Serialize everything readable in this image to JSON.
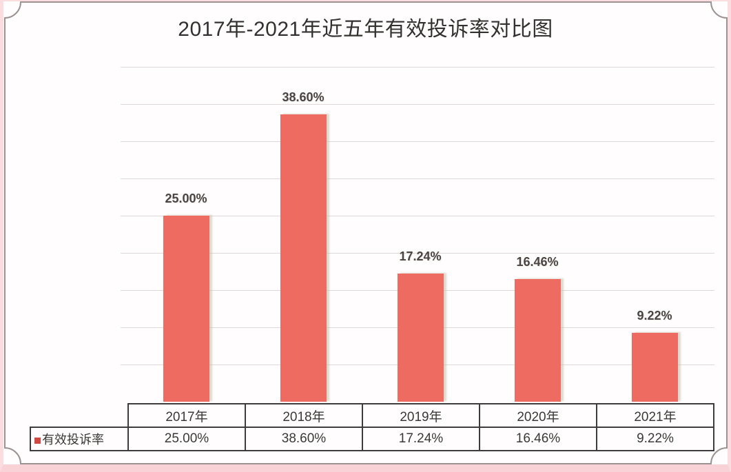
{
  "chart_data": {
    "type": "bar",
    "title": "2017年-2021年近五年有效投诉率对比图",
    "categories": [
      "2017年",
      "2018年",
      "2019年",
      "2020年",
      "2021年"
    ],
    "series": [
      {
        "name": "有效投诉率",
        "values": [
          25.0,
          38.6,
          17.24,
          16.46,
          9.22
        ]
      }
    ],
    "data_labels": [
      "25.00%",
      "38.60%",
      "17.24%",
      "16.46%",
      "9.22%"
    ],
    "xlabel": "",
    "ylabel": "",
    "ylim": [
      0,
      45
    ],
    "gridline_step": 5,
    "grid": true,
    "legend_position": "bottom-table-left",
    "show_data_table": true,
    "data_table": {
      "legend_label": "有效投诉率",
      "year_row": [
        "2017年",
        "2018年",
        "2019年",
        "2020年",
        "2021年"
      ],
      "value_row": [
        "25.00%",
        "38.60%",
        "17.24%",
        "16.46%",
        "9.22%"
      ]
    },
    "colors": {
      "bar": "#ee6b61",
      "legend_marker": "#d04a42",
      "gridline": "#e0d7d7",
      "table_border": "#3d3b3b",
      "frame_line": "#9c9292",
      "page_edge_pink": "#fbdcdf"
    }
  }
}
